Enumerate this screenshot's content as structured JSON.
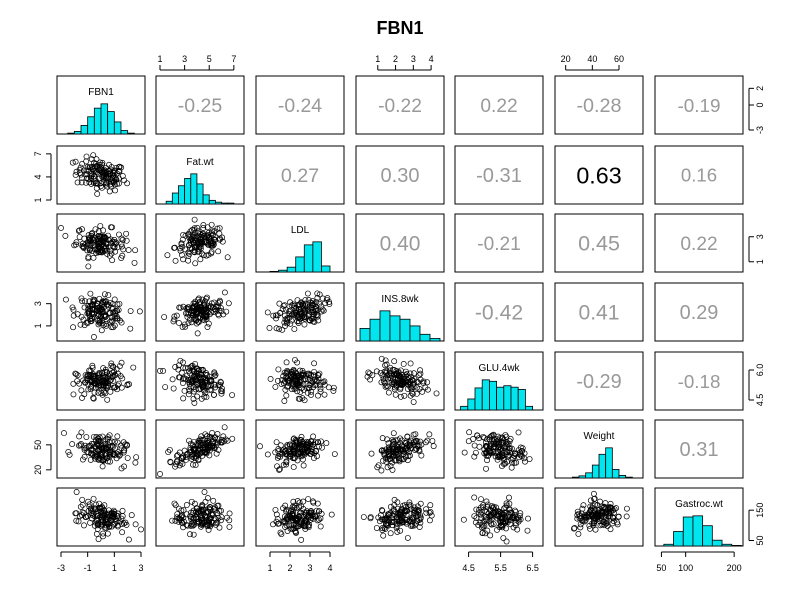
{
  "chart_data": {
    "type": "scatter-matrix",
    "title": "FBN1",
    "variables": [
      "FBN1",
      "Fat.wt",
      "LDL",
      "INS.8wk",
      "GLU.4wk",
      "Weight",
      "Gastroc.wt"
    ],
    "ranges": [
      [
        -3,
        3
      ],
      [
        1,
        7.5
      ],
      [
        0.5,
        4.5
      ],
      [
        0,
        4.5
      ],
      [
        4.2,
        6.7
      ],
      [
        15,
        75
      ],
      [
        45,
        210
      ]
    ],
    "axis_ticks": [
      {
        "var": 0,
        "side": "bottom",
        "values": [
          -3,
          -1,
          1,
          3
        ],
        "labels": [
          "-3",
          "-1",
          "1",
          "3"
        ]
      },
      {
        "var": 0,
        "side": "right",
        "values": [
          -3,
          0,
          2
        ],
        "labels": [
          "-3",
          "0",
          "2"
        ]
      },
      {
        "var": 1,
        "side": "top",
        "values": [
          1,
          3,
          5,
          7
        ],
        "labels": [
          "1",
          "3",
          "5",
          "7"
        ]
      },
      {
        "var": 1,
        "side": "left",
        "values": [
          1,
          4,
          7
        ],
        "labels": [
          "1",
          "4",
          "7"
        ]
      },
      {
        "var": 2,
        "side": "bottom",
        "values": [
          1,
          2,
          3,
          4
        ],
        "labels": [
          "1",
          "2",
          "3",
          "4"
        ]
      },
      {
        "var": 2,
        "side": "right",
        "values": [
          1,
          3
        ],
        "labels": [
          "1",
          "3"
        ]
      },
      {
        "var": 3,
        "side": "top",
        "values": [
          1,
          2,
          3,
          4
        ],
        "labels": [
          "1",
          "2",
          "3",
          "4"
        ]
      },
      {
        "var": 3,
        "side": "left",
        "values": [
          1,
          3
        ],
        "labels": [
          "1",
          "3"
        ]
      },
      {
        "var": 4,
        "side": "bottom",
        "values": [
          4.5,
          5.5,
          6.5
        ],
        "labels": [
          "4.5",
          "5.5",
          "6.5"
        ]
      },
      {
        "var": 4,
        "side": "right",
        "values": [
          4.5,
          6.0
        ],
        "labels": [
          "4.5",
          "6.0"
        ]
      },
      {
        "var": 5,
        "side": "top",
        "values": [
          20,
          40,
          60
        ],
        "labels": [
          "20",
          "40",
          "60"
        ]
      },
      {
        "var": 5,
        "side": "left",
        "values": [
          20,
          50
        ],
        "labels": [
          "20",
          "50"
        ]
      },
      {
        "var": 6,
        "side": "bottom",
        "values": [
          50,
          100,
          200
        ],
        "labels": [
          "50",
          "100",
          "200"
        ]
      },
      {
        "var": 6,
        "side": "right",
        "values": [
          50,
          150
        ],
        "labels": [
          "50",
          "150"
        ]
      }
    ],
    "correlations": [
      {
        "row": 0,
        "col": 1,
        "value": "-0.25",
        "r": -0.25
      },
      {
        "row": 0,
        "col": 2,
        "value": "-0.24",
        "r": -0.24
      },
      {
        "row": 0,
        "col": 3,
        "value": "-0.22",
        "r": -0.22
      },
      {
        "row": 0,
        "col": 4,
        "value": "0.22",
        "r": 0.22
      },
      {
        "row": 0,
        "col": 5,
        "value": "-0.28",
        "r": -0.28
      },
      {
        "row": 0,
        "col": 6,
        "value": "-0.19",
        "r": -0.19
      },
      {
        "row": 1,
        "col": 2,
        "value": "0.27",
        "r": 0.27
      },
      {
        "row": 1,
        "col": 3,
        "value": "0.30",
        "r": 0.3
      },
      {
        "row": 1,
        "col": 4,
        "value": "-0.31",
        "r": -0.31
      },
      {
        "row": 1,
        "col": 5,
        "value": "0.63",
        "r": 0.63
      },
      {
        "row": 1,
        "col": 6,
        "value": "0.16",
        "r": 0.16
      },
      {
        "row": 2,
        "col": 3,
        "value": "0.40",
        "r": 0.4
      },
      {
        "row": 2,
        "col": 4,
        "value": "-0.21",
        "r": -0.21
      },
      {
        "row": 2,
        "col": 5,
        "value": "0.45",
        "r": 0.45
      },
      {
        "row": 2,
        "col": 6,
        "value": "0.22",
        "r": 0.22
      },
      {
        "row": 3,
        "col": 4,
        "value": "-0.42",
        "r": -0.42
      },
      {
        "row": 3,
        "col": 5,
        "value": "0.41",
        "r": 0.41
      },
      {
        "row": 3,
        "col": 6,
        "value": "0.29",
        "r": 0.29
      },
      {
        "row": 4,
        "col": 5,
        "value": "-0.29",
        "r": -0.29
      },
      {
        "row": 4,
        "col": 6,
        "value": "-0.18",
        "r": -0.18
      },
      {
        "row": 5,
        "col": 6,
        "value": "0.31",
        "r": 0.31
      }
    ],
    "histograms": [
      {
        "var": 0,
        "bins": [
          -2.5,
          2.5
        ],
        "counts": [
          1,
          3,
          10,
          20,
          30,
          35,
          26,
          14,
          4,
          1
        ]
      },
      {
        "var": 1,
        "bins": [
          1.5,
          7.5
        ],
        "counts": [
          3,
          12,
          20,
          28,
          33,
          22,
          10,
          4,
          2,
          1,
          1,
          0
        ]
      },
      {
        "var": 2,
        "bins": [
          1,
          4
        ],
        "counts": [
          1,
          3,
          8,
          25,
          45,
          50,
          10
        ]
      },
      {
        "var": 3,
        "bins": [
          0,
          4.5
        ],
        "counts": [
          15,
          26,
          36,
          30,
          26,
          18,
          8,
          3
        ]
      },
      {
        "var": 4,
        "bins": [
          4.25,
          6.5
        ],
        "counts": [
          5,
          15,
          30,
          41,
          39,
          31,
          33,
          31,
          28,
          5
        ]
      },
      {
        "var": 5,
        "bins": [
          25,
          70
        ],
        "counts": [
          2,
          5,
          12,
          30,
          55,
          70,
          20,
          6,
          2
        ]
      },
      {
        "var": 6,
        "bins": [
          55,
          215
        ],
        "counts": [
          3,
          25,
          50,
          52,
          35,
          10,
          3,
          1
        ]
      }
    ],
    "n_points": 140,
    "point_style": "open-circle",
    "histogram_color": "#00e5ee",
    "strong_correlation_color": "#000000",
    "weak_correlation_color": "#999999"
  }
}
